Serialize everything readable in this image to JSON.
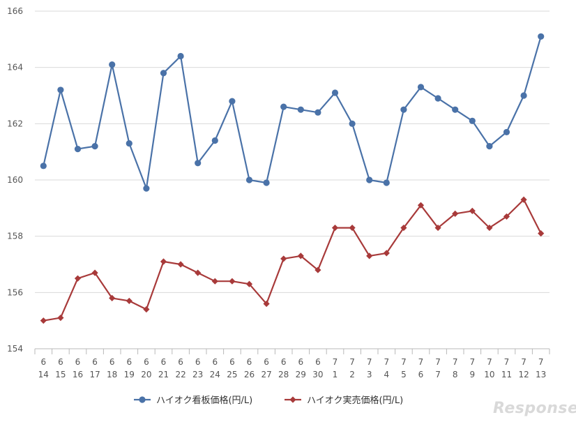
{
  "chart_data": {
    "type": "line",
    "title": "",
    "xlabel": "",
    "ylabel": "",
    "ylim": [
      154,
      166
    ],
    "yticks": [
      154,
      156,
      158,
      160,
      162,
      164,
      166
    ],
    "grid": true,
    "legend_position": "bottom",
    "categories": [
      {
        "m": "6",
        "d": "14"
      },
      {
        "m": "6",
        "d": "15"
      },
      {
        "m": "6",
        "d": "16"
      },
      {
        "m": "6",
        "d": "17"
      },
      {
        "m": "6",
        "d": "18"
      },
      {
        "m": "6",
        "d": "19"
      },
      {
        "m": "6",
        "d": "20"
      },
      {
        "m": "6",
        "d": "21"
      },
      {
        "m": "6",
        "d": "22"
      },
      {
        "m": "6",
        "d": "23"
      },
      {
        "m": "6",
        "d": "24"
      },
      {
        "m": "6",
        "d": "25"
      },
      {
        "m": "6",
        "d": "26"
      },
      {
        "m": "6",
        "d": "27"
      },
      {
        "m": "6",
        "d": "28"
      },
      {
        "m": "6",
        "d": "29"
      },
      {
        "m": "6",
        "d": "30"
      },
      {
        "m": "7",
        "d": "1"
      },
      {
        "m": "7",
        "d": "2"
      },
      {
        "m": "7",
        "d": "3"
      },
      {
        "m": "7",
        "d": "4"
      },
      {
        "m": "7",
        "d": "5"
      },
      {
        "m": "7",
        "d": "6"
      },
      {
        "m": "7",
        "d": "7"
      },
      {
        "m": "7",
        "d": "8"
      },
      {
        "m": "7",
        "d": "9"
      },
      {
        "m": "7",
        "d": "10"
      },
      {
        "m": "7",
        "d": "11"
      },
      {
        "m": "7",
        "d": "12"
      },
      {
        "m": "7",
        "d": "13"
      }
    ],
    "series": [
      {
        "name": "ハイオク看板価格(円/L)",
        "color": "#4a72a8",
        "marker": "circle",
        "values": [
          160.5,
          163.2,
          161.1,
          161.2,
          164.1,
          161.3,
          159.7,
          163.8,
          164.4,
          160.6,
          161.4,
          162.8,
          160.0,
          159.9,
          162.6,
          162.5,
          162.4,
          163.1,
          162.0,
          160.0,
          159.9,
          162.5,
          163.3,
          162.9,
          162.5,
          162.1,
          161.2,
          161.7,
          163.0,
          165.1
        ]
      },
      {
        "name": "ハイオク実売価格(円/L)",
        "color": "#a83a3a",
        "marker": "diamond",
        "values": [
          155.0,
          155.1,
          156.5,
          156.7,
          155.8,
          155.7,
          155.4,
          157.1,
          157.0,
          156.7,
          156.4,
          156.4,
          156.3,
          155.6,
          157.2,
          157.3,
          156.8,
          158.3,
          158.3,
          157.3,
          157.4,
          158.3,
          159.1,
          158.3,
          158.8,
          158.9,
          158.3,
          158.7,
          159.3,
          158.1
        ]
      }
    ]
  },
  "watermark": "Response."
}
